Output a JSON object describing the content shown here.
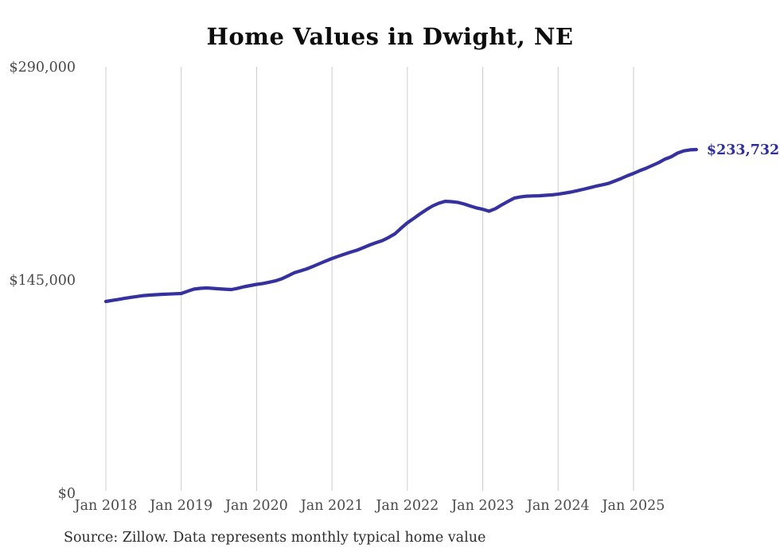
{
  "page": {
    "title": "Home Values in Dwight, NE",
    "source_note": "Source: Zillow. Data represents monthly typical home value"
  },
  "chart_data": {
    "type": "line",
    "title": "Home Values in Dwight, NE",
    "xlabel": "",
    "ylabel": "",
    "ylim": [
      0,
      290000
    ],
    "grid": "vertical-only",
    "legend": "none",
    "x_ticks": [
      "Jan 2018",
      "Jan 2019",
      "Jan 2020",
      "Jan 2021",
      "Jan 2022",
      "Jan 2023",
      "Jan 2024",
      "Jan 2025"
    ],
    "y_ticks": [
      {
        "label": "$0",
        "value": 0
      },
      {
        "label": "$145,000",
        "value": 145000
      },
      {
        "label": "$290,000",
        "value": 290000
      }
    ],
    "end_label": "$233,732",
    "last_value": 233732,
    "series": [
      {
        "name": "Monthly typical home value",
        "x_start": "Jan 2018",
        "x_step_months": 1,
        "values": [
          130400,
          131100,
          131800,
          132500,
          133200,
          133800,
          134400,
          134700,
          135000,
          135250,
          135450,
          135650,
          135800,
          137300,
          138800,
          139300,
          139600,
          139300,
          139000,
          138700,
          138500,
          139400,
          140400,
          141200,
          142000,
          142600,
          143500,
          144400,
          145800,
          147800,
          149900,
          151200,
          152600,
          154300,
          156100,
          157900,
          159600,
          161100,
          162600,
          164000,
          165300,
          167000,
          168800,
          170400,
          171800,
          173900,
          176400,
          180200,
          183900,
          186800,
          189900,
          192800,
          195300,
          197200,
          198500,
          198300,
          197800,
          196700,
          195300,
          194000,
          193100,
          191800,
          193500,
          196000,
          198400,
          200700,
          201500,
          202000,
          202200,
          202300,
          202600,
          202900,
          203400,
          204100,
          204800,
          205700,
          206700,
          207700,
          208800,
          209700,
          210700,
          212300,
          214000,
          215900,
          217500,
          219400,
          221000,
          222900,
          224800,
          227200,
          228800,
          231300,
          232800,
          233500,
          233732
        ]
      }
    ],
    "colors": {
      "line": "#35319e",
      "end_label": "#2e2e9e",
      "gridline": "#cccccc",
      "tick_text": "#4a4a4a",
      "title_text": "#0d0d0d",
      "source_text": "#2e2e2e"
    }
  }
}
